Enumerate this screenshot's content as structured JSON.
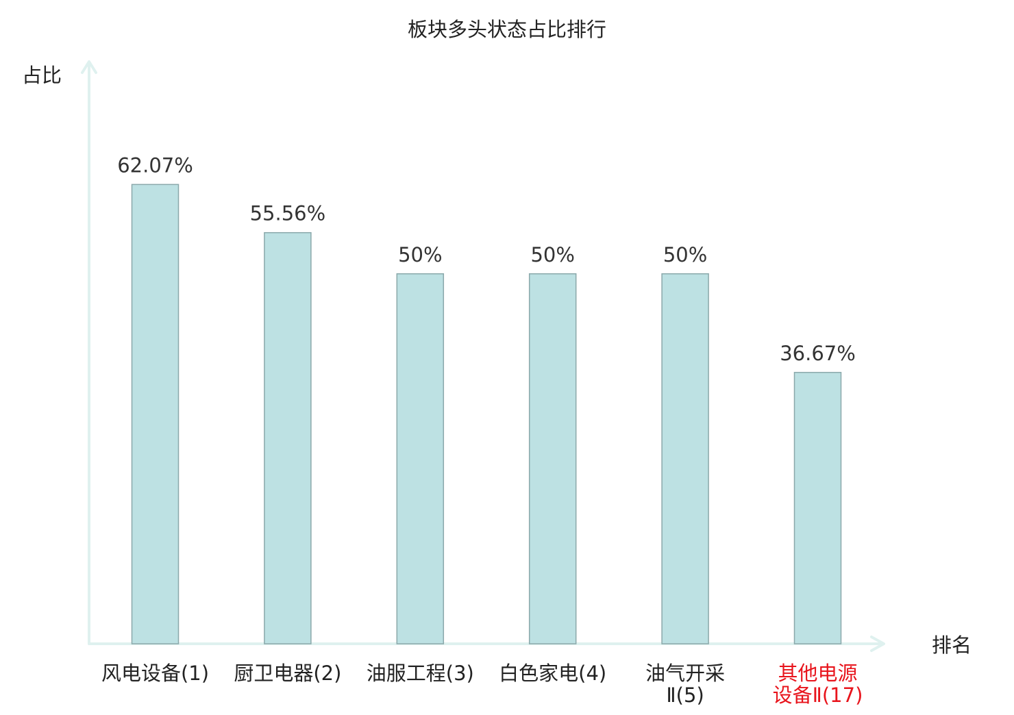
{
  "chart_data": {
    "type": "bar",
    "title": "板块多头状态占比排行",
    "xlabel": "排名",
    "ylabel": "占比",
    "categories": [
      [
        "风电设备(1)"
      ],
      [
        "厨卫电器(2)"
      ],
      [
        "油服工程(3)"
      ],
      [
        "白色家电(4)"
      ],
      [
        "油气开采",
        "Ⅱ(5)"
      ],
      [
        "其他电源",
        "设备Ⅱ(17)"
      ]
    ],
    "values": [
      62.07,
      55.56,
      50,
      50,
      50,
      36.67
    ],
    "value_labels": [
      "62.07%",
      "55.56%",
      "50%",
      "50%",
      "50%",
      "36.67%"
    ],
    "highlight_index": 5,
    "ylim": [
      0,
      87
    ],
    "grid": false,
    "colors": {
      "bar_fill": "#bde1e3",
      "bar_stroke": "#8aa8aa",
      "axis": "#dff1ef",
      "text": "#333333",
      "highlight_text": "#e8141c"
    }
  }
}
